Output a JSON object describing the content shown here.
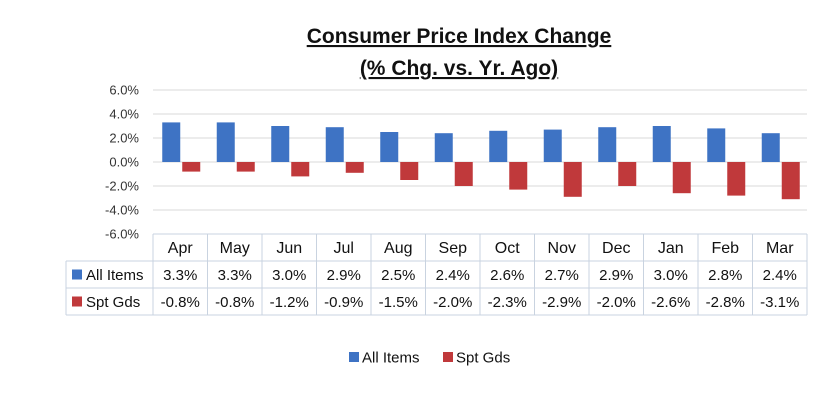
{
  "chart_data": {
    "type": "bar",
    "title": "Consumer Price Index Change",
    "subtitle": "(% Chg. vs. Yr. Ago)",
    "categories": [
      "Apr",
      "May",
      "Jun",
      "Jul",
      "Aug",
      "Sep",
      "Oct",
      "Nov",
      "Dec",
      "Jan",
      "Feb",
      "Mar"
    ],
    "series": [
      {
        "name": "All Items",
        "color": "#3e73c4",
        "values": [
          3.3,
          3.3,
          3.0,
          2.9,
          2.5,
          2.4,
          2.6,
          2.7,
          2.9,
          3.0,
          2.8,
          2.4
        ],
        "labels": [
          "3.3%",
          "3.3%",
          "3.0%",
          "2.9%",
          "2.5%",
          "2.4%",
          "2.6%",
          "2.7%",
          "2.9%",
          "3.0%",
          "2.8%",
          "2.4%"
        ]
      },
      {
        "name": "Spt Gds",
        "color": "#c0393b",
        "values": [
          -0.8,
          -0.8,
          -1.2,
          -0.9,
          -1.5,
          -2.0,
          -2.3,
          -2.9,
          -2.0,
          -2.6,
          -2.8,
          -3.1
        ],
        "labels": [
          "-0.8%",
          "-0.8%",
          "-1.2%",
          "-0.9%",
          "-1.5%",
          "-2.0%",
          "-2.3%",
          "-2.9%",
          "-2.0%",
          "-2.6%",
          "-2.8%",
          "-3.1%"
        ]
      }
    ],
    "ylim": [
      -6.0,
      6.0
    ],
    "yticks": [
      6.0,
      4.0,
      2.0,
      0.0,
      -2.0,
      -4.0,
      -6.0
    ],
    "ytick_labels": [
      "6.0%",
      "4.0%",
      "2.0%",
      "0.0%",
      "-2.0%",
      "-4.0%",
      "-6.0%"
    ],
    "grid": true,
    "data_table": true,
    "legend_position": "bottom"
  }
}
